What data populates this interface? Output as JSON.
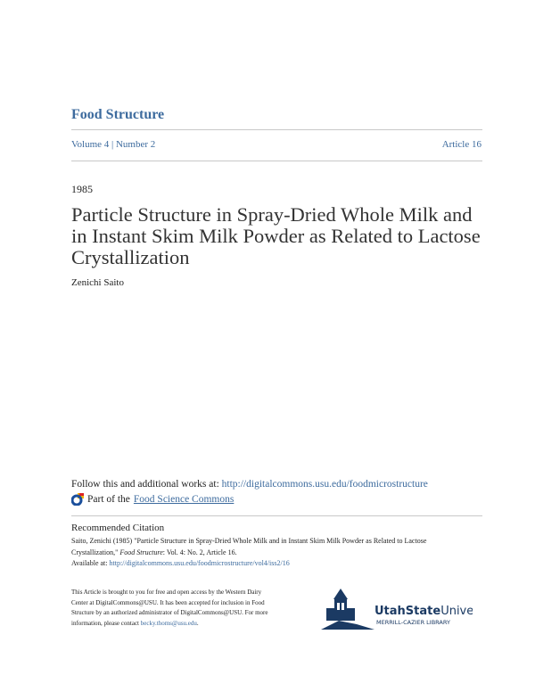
{
  "journal": "Food Structure",
  "volume_label": "Volume 4",
  "number_label": "Number 2",
  "article_label": "Article 16",
  "year": "1985",
  "title_lines": [
    "Particle Structure in Spray-Dried Whole Milk and",
    "in Instant Skim Milk Powder as Related to Lactose",
    "Crystallization"
  ],
  "author": "Zenichi Saito",
  "follow_text": "Follow this and additional works at: ",
  "follow_link": "http://digitalcommons.usu.edu/foodmicrostructure",
  "part_of_text": "Part of the ",
  "part_of_link": "Food Science Commons",
  "recommended_heading": "Recommended Citation",
  "citation": {
    "line1": "Saito, Zenichi (1985) \"Particle Structure in Spray-Dried Whole Milk and in Instant Skim Milk Powder as Related to Lactose",
    "line2_a": "Crystallization,\" ",
    "line2_journal": "Food Structure",
    "line2_b": ": Vol. 4: No. 2, Article 16.",
    "available_label": "Available at: ",
    "available_link": "http://digitalcommons.usu.edu/foodmicrostructure/vol4/iss2/16"
  },
  "footer": {
    "text": "This Article is brought to you for free and open access by the Western Dairy Center at DigitalCommons@USU. It has been accepted for inclusion in Food Structure by an authorized administrator of DigitalCommons@USU. For more information, please contact ",
    "email": "becky.thoms@usu.edu",
    "end": "."
  },
  "logo": {
    "bold": "UtahState",
    "regular": "University",
    "sub": "MERRILL-CAZIER LIBRARY"
  },
  "colors": {
    "link": "#3d6b9e",
    "logo": "#1b3a63"
  }
}
